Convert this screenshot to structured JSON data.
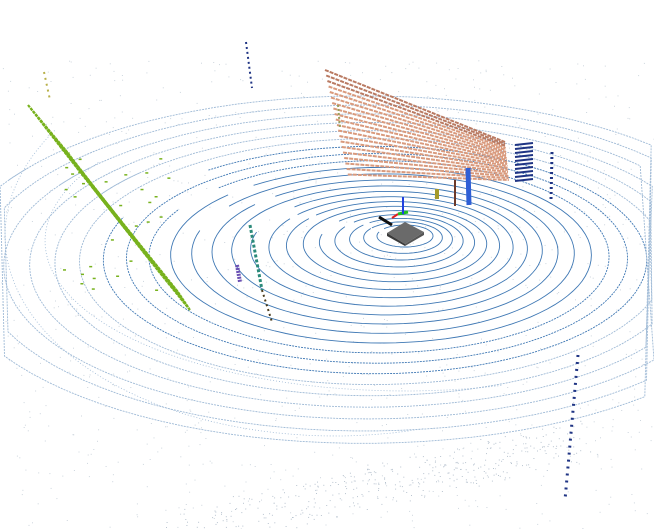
{
  "scene": {
    "background": "#ffffff",
    "colors": {
      "ground_rings": "#3f78b4",
      "ground_faint": "#9fbad6",
      "scatter": "#b9c4d0",
      "vegetation": "#78b21e",
      "building": "#d99a7d",
      "building_dark": "#b97a62",
      "pole_navy": "#1f3484",
      "pole_teal": "#2b8a7a",
      "pole_purple": "#6a4fb3",
      "pole_dark": "#4a3a1a",
      "pedestrian_olive": "#a49a2a",
      "pedestrian_brown": "#6b3a2a",
      "pole_blue": "#2f5fd6",
      "ego_vehicle": "#4a4a4a",
      "axis_x": "#e02020",
      "axis_y": "#20c020",
      "axis_z": "#2040e0",
      "heading": "#111111"
    },
    "objects": [
      {
        "name": "vegetation-cluster",
        "icon": "hedge-icon"
      },
      {
        "name": "building-facade",
        "icon": "building-icon"
      },
      {
        "name": "ego-vehicle",
        "icon": "car-icon"
      },
      {
        "name": "coordinate-axes",
        "icon": "axes-icon"
      },
      {
        "name": "pole-blue",
        "icon": "pole-icon"
      },
      {
        "name": "pole-navy",
        "icon": "pole-icon"
      },
      {
        "name": "pole-teal",
        "icon": "pole-icon"
      },
      {
        "name": "pedestrian",
        "icon": "person-icon"
      }
    ]
  }
}
